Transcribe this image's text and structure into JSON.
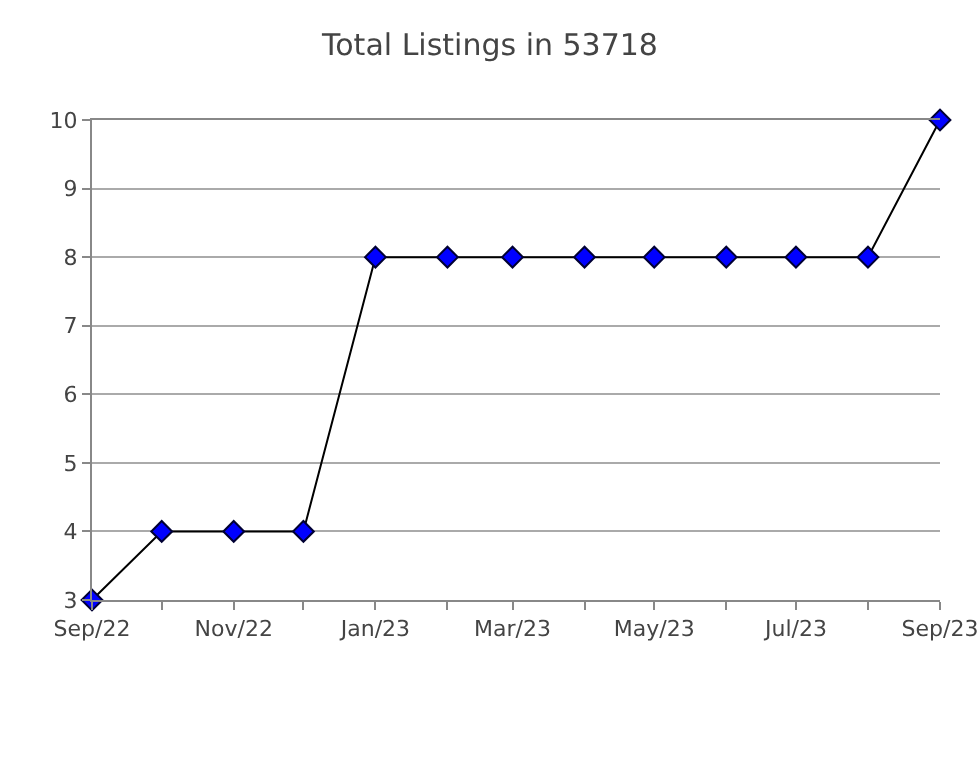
{
  "chart_data": {
    "type": "line",
    "title": "Total Listings in 53718",
    "x": [
      "2022-09",
      "2022-10",
      "2022-11",
      "2022-12",
      "2023-01",
      "2023-02",
      "2023-03",
      "2023-04",
      "2023-05",
      "2023-06",
      "2023-07",
      "2023-08",
      "2023-09"
    ],
    "series": [
      {
        "color": "#0000ff",
        "values": [
          3,
          4,
          4,
          4,
          8,
          8,
          8,
          8,
          8,
          8,
          8,
          8,
          10
        ]
      }
    ],
    "xlim": [
      "2022-09",
      "2023-09"
    ],
    "xticks": [
      {
        "value": "2022-09",
        "label": "Sep/22"
      },
      {
        "value": "2022-10",
        "label": null
      },
      {
        "value": "2022-11",
        "label": "Nov/22"
      },
      {
        "value": "2022-12",
        "label": null
      },
      {
        "value": "2023-01",
        "label": "Jan/23"
      },
      {
        "value": "2023-02",
        "label": null
      },
      {
        "value": "2023-03",
        "label": "Mar/23"
      },
      {
        "value": "2023-04",
        "label": null
      },
      {
        "value": "2023-05",
        "label": "May/23"
      },
      {
        "value": "2023-06",
        "label": null
      },
      {
        "value": "2023-07",
        "label": "Jul/23"
      },
      {
        "value": "2023-08",
        "label": null
      },
      {
        "value": "2023-09",
        "label": "Sep/23"
      }
    ],
    "ylim": [
      3,
      10
    ],
    "yticks": [
      3,
      4,
      5,
      6,
      7,
      8,
      9,
      10
    ],
    "grid": "y",
    "marker": "diamond",
    "line_style": "solid"
  }
}
